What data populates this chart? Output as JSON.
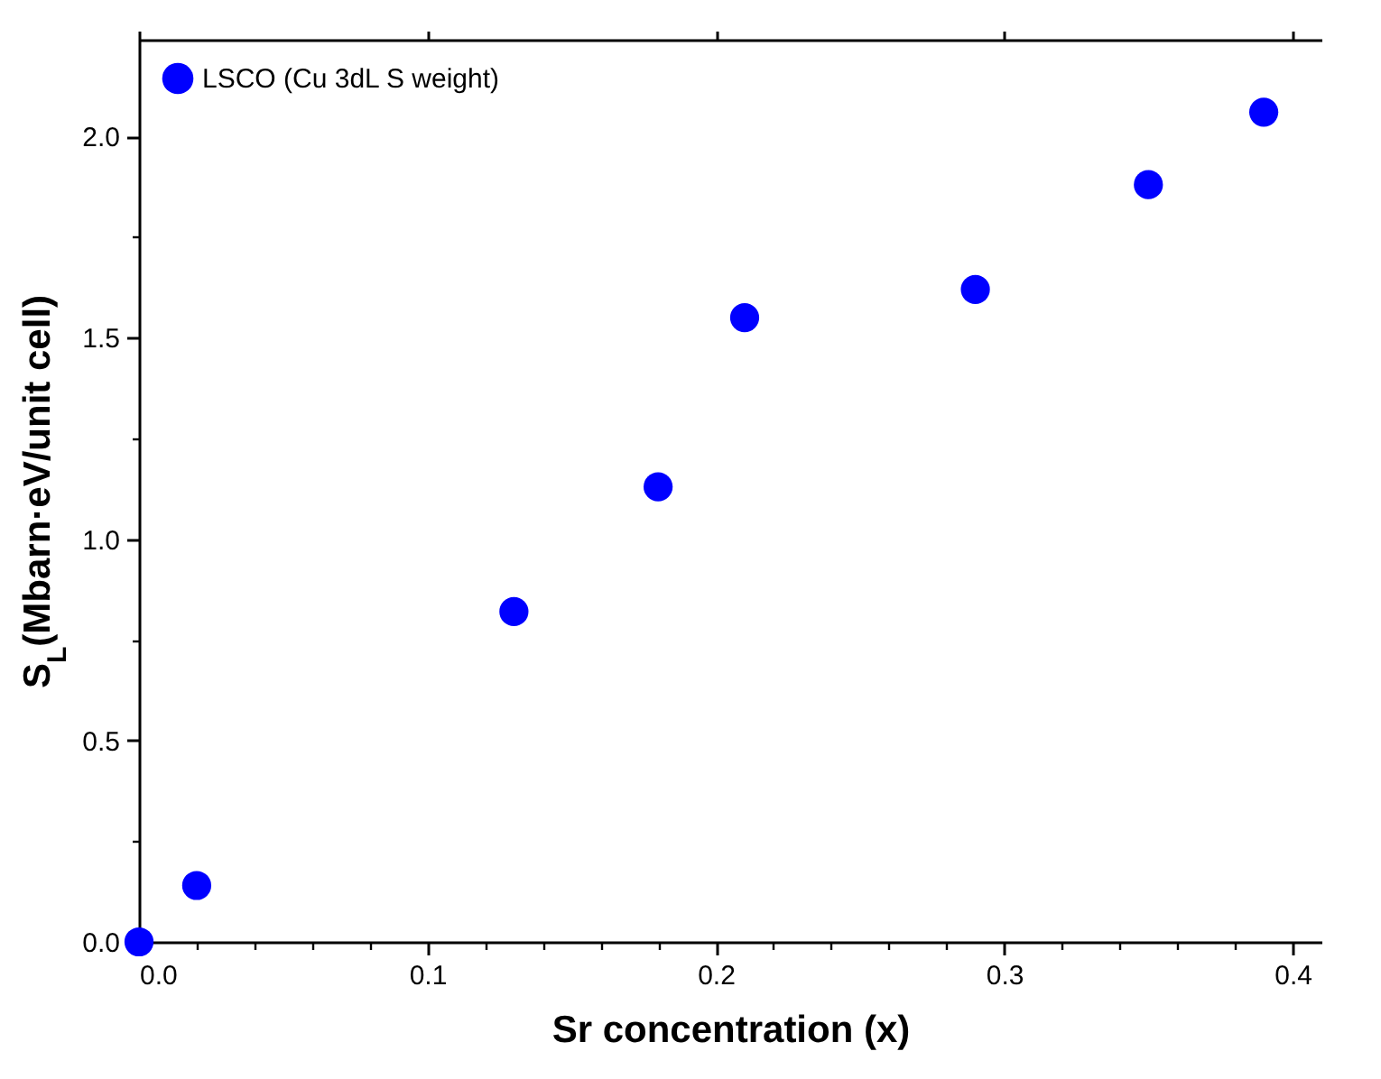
{
  "chart_data": {
    "type": "scatter",
    "xlabel": "Sr concentration (x)",
    "ylabel": "S$_{L}$(Mbarn·eV/unit cell)",
    "x": [
      0,
      0.02,
      0.13,
      0.18,
      0.21,
      0.29,
      0.35,
      0.39
    ],
    "series": [
      {
        "name": "LSCO (Cu 3dL S weight)",
        "color": "#0000ff",
        "values": [
          0,
          0.14,
          0.82,
          1.13,
          1.55,
          1.62,
          1.88,
          2.06
        ]
      }
    ],
    "xlim": [
      0,
      0.41
    ],
    "xticks": [
      {
        "value": 0,
        "label": "0.0"
      },
      {
        "value": 0.1,
        "label": "0.1"
      },
      {
        "value": 0.2,
        "label": "0.2"
      },
      {
        "value": 0.3,
        "label": "0.3"
      },
      {
        "value": 0.4,
        "label": "0.4"
      }
    ],
    "ylim": [
      0,
      2.24
    ],
    "yticks": [
      {
        "value": 0,
        "label": "0.0"
      },
      {
        "value": 0.5,
        "label": "0.5"
      },
      {
        "value": 1,
        "label": "1.0"
      },
      {
        "value": 1.5,
        "label": "1.5"
      },
      {
        "value": 2,
        "label": "2.0"
      }
    ],
    "marker": "circle",
    "legend": "top left",
    "grid": false
  }
}
